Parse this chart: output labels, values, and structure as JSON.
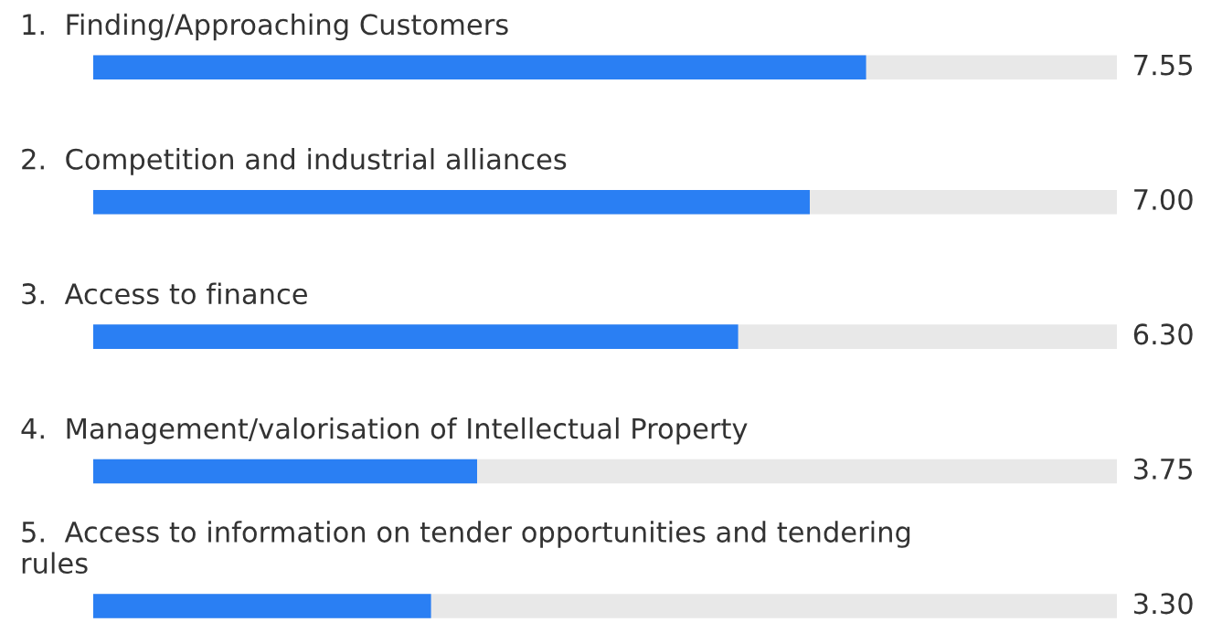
{
  "chart_data": {
    "type": "bar",
    "orientation": "horizontal",
    "categories": [
      "1.  Finding/Approaching Customers",
      "2.  Competition and industrial alliances",
      "3.  Access to finance",
      "4.  Management/valorisation of Intellectual Property",
      "5.  Access to information on tender opportunities and tendering\nrules"
    ],
    "values": [
      7.55,
      7.0,
      6.3,
      3.75,
      3.3
    ],
    "value_labels": [
      "7.55",
      "7.00",
      "6.30",
      "3.75",
      "3.30"
    ],
    "color": "#2a7ff3",
    "xlim": [
      0,
      10
    ]
  }
}
